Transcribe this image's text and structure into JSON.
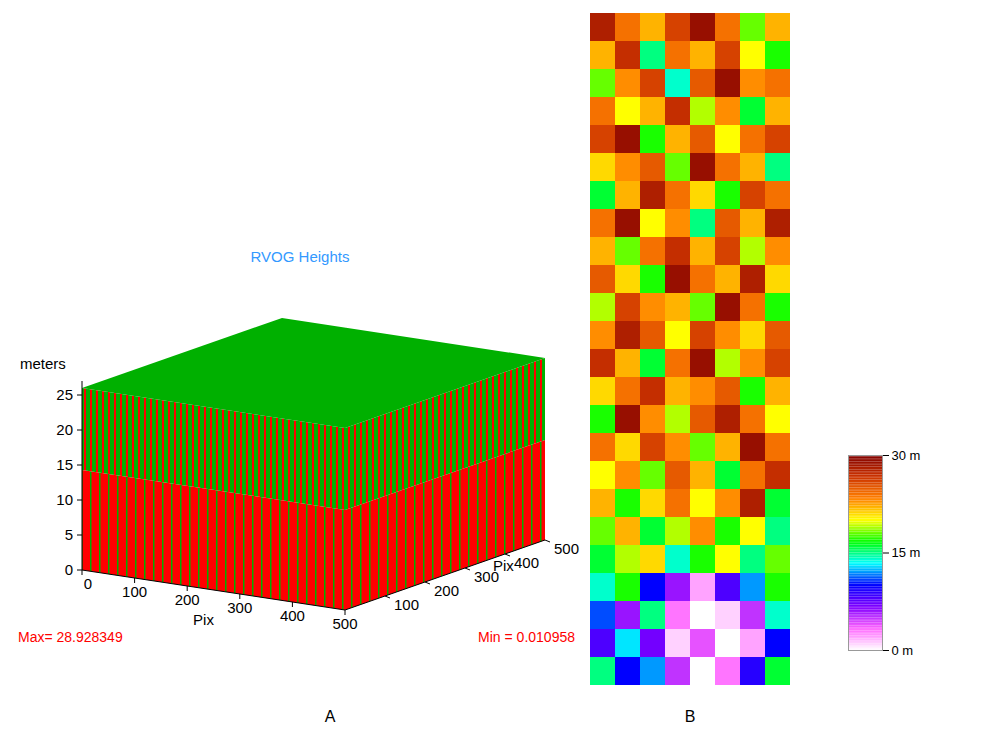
{
  "chart_data": [
    {
      "type": "3d_bar",
      "panel": "A",
      "title": "RVOG Heights",
      "zlabel": "meters",
      "xlabel": "Pix",
      "ylabel": "Pix",
      "xlim": [
        0,
        500
      ],
      "ylim": [
        0,
        500
      ],
      "zlim": [
        0,
        27
      ],
      "xticks": [
        0,
        100,
        200,
        300,
        400,
        500
      ],
      "yticks": [
        100,
        200,
        300,
        400,
        500
      ],
      "zticks": [
        0,
        5,
        10,
        15,
        20,
        25
      ],
      "surface_height": 26,
      "max": {
        "value": 28.928349,
        "label": "Max= 28.928349"
      },
      "min": {
        "value": 0.010958,
        "label": "Min = 0.010958"
      },
      "colors": [
        "#00b000",
        "#ff0000"
      ]
    },
    {
      "type": "heatmap",
      "panel": "B",
      "cells": [
        [
          28,
          24,
          22,
          26,
          29,
          24,
          18,
          22
        ],
        [
          22,
          27,
          15,
          24,
          22,
          26,
          20,
          17
        ],
        [
          18,
          23,
          26,
          14,
          25,
          29,
          23,
          24
        ],
        [
          24,
          20,
          22,
          27,
          19,
          23,
          16,
          22
        ],
        [
          26,
          29,
          17,
          22,
          25,
          20,
          24,
          26
        ],
        [
          21,
          23,
          25,
          18,
          29,
          24,
          22,
          15
        ],
        [
          16,
          22,
          28,
          24,
          21,
          17,
          26,
          24
        ],
        [
          24,
          29,
          20,
          23,
          15,
          25,
          22,
          28
        ],
        [
          22,
          18,
          24,
          27,
          22,
          26,
          19,
          23
        ],
        [
          25,
          21,
          17,
          29,
          24,
          22,
          28,
          21
        ],
        [
          19,
          26,
          23,
          22,
          18,
          29,
          24,
          17
        ],
        [
          23,
          28,
          25,
          20,
          26,
          23,
          21,
          25
        ],
        [
          27,
          22,
          16,
          24,
          29,
          19,
          23,
          26
        ],
        [
          21,
          24,
          27,
          22,
          23,
          25,
          17,
          22
        ],
        [
          17,
          29,
          23,
          19,
          25,
          28,
          24,
          20
        ],
        [
          24,
          21,
          26,
          23,
          18,
          22,
          29,
          24
        ],
        [
          20,
          23,
          18,
          25,
          22,
          16,
          24,
          27
        ],
        [
          22,
          17,
          21,
          24,
          20,
          23,
          28,
          16
        ],
        [
          18,
          22,
          16,
          19,
          23,
          17,
          20,
          15
        ],
        [
          16,
          19,
          21,
          14,
          17,
          20,
          15,
          18
        ],
        [
          14,
          17,
          10,
          6,
          2,
          8,
          12,
          17
        ],
        [
          11,
          6,
          15,
          3,
          0,
          1,
          5,
          14
        ],
        [
          8,
          13,
          7,
          1,
          4,
          0,
          2,
          10
        ],
        [
          15,
          10,
          12,
          5,
          0,
          3,
          9,
          16
        ]
      ],
      "colorbar": {
        "range": [
          0,
          30
        ],
        "ticks": [
          {
            "value": 0,
            "label": "0 m"
          },
          {
            "value": 15,
            "label": "15 m"
          },
          {
            "value": 30,
            "label": "30 m"
          }
        ],
        "colors": [
          "#ffffff",
          "#ff66ff",
          "#8000ff",
          "#0000ff",
          "#00ffff",
          "#00ff00",
          "#ffff00",
          "#ff8000",
          "#cc3300",
          "#800000"
        ]
      }
    }
  ]
}
